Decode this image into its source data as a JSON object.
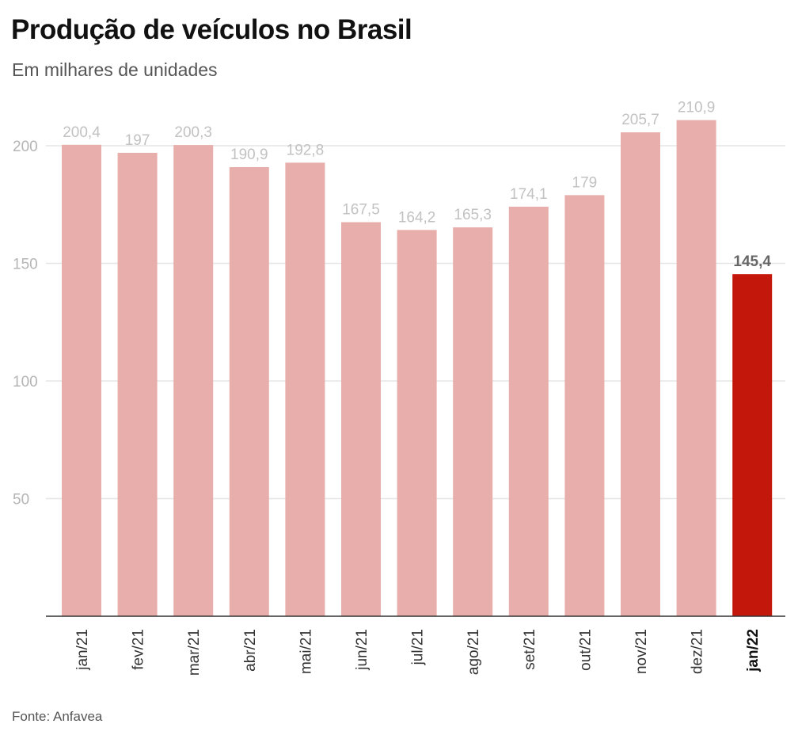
{
  "header": {
    "title": "Produção de veículos no Brasil",
    "subtitle": "Em milhares de unidades"
  },
  "footer": {
    "source": "Fonte: Anfavea"
  },
  "colors": {
    "bar": "#e8aeab",
    "bar_highlight": "#c4170c",
    "gridline": "#e6e6e6",
    "axis": "#333333"
  },
  "chart_data": {
    "type": "bar",
    "title": "Produção de veículos no Brasil",
    "subtitle": "Em milhares de unidades",
    "categories": [
      "jan/21",
      "fev/21",
      "mar/21",
      "abr/21",
      "mai/21",
      "jun/21",
      "jul/21",
      "ago/21",
      "set/21",
      "out/21",
      "nov/21",
      "dez/21",
      "jan/22"
    ],
    "values": [
      200.4,
      197,
      200.3,
      190.9,
      192.8,
      167.5,
      164.2,
      165.3,
      174.1,
      179,
      205.7,
      210.9,
      145.4
    ],
    "value_labels": [
      "200,4",
      "197",
      "200,3",
      "190,9",
      "192,8",
      "167,5",
      "164,2",
      "165,3",
      "174,1",
      "179",
      "205,7",
      "210,9",
      "145,4"
    ],
    "highlight_index": 12,
    "yticks": [
      50,
      100,
      150,
      200
    ],
    "ylim": [
      0,
      200
    ],
    "grid": true,
    "xlabel": "",
    "ylabel": ""
  }
}
